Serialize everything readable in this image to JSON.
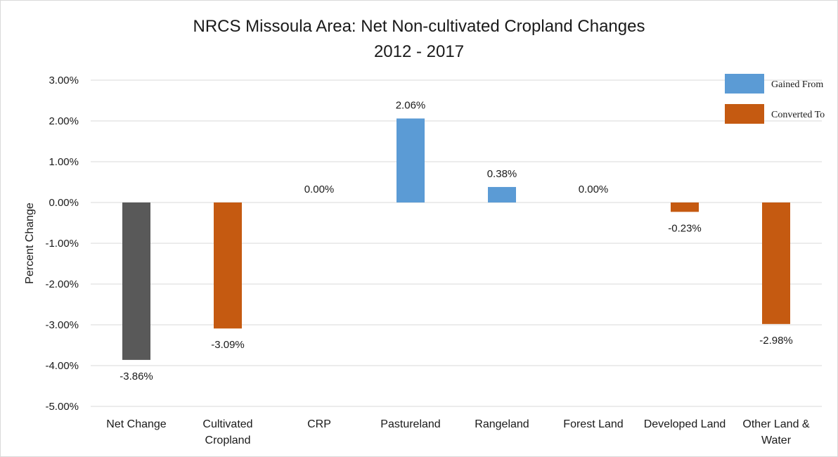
{
  "chart_data": {
    "type": "bar",
    "title": "NRCS Missoula Area: Net Non-cultivated Cropland Changes",
    "subtitle": "2012 - 2017",
    "xlabel": "",
    "ylabel": "Percent Change",
    "ylim": [
      -0.05,
      0.03
    ],
    "yticks": [
      0.03,
      0.02,
      0.01,
      0.0,
      -0.01,
      -0.02,
      -0.03,
      -0.04,
      -0.05
    ],
    "ytick_labels": [
      "3.00%",
      "2.00%",
      "1.00%",
      "0.00%",
      "-1.00%",
      "-2.00%",
      "-3.00%",
      "-4.00%",
      "-5.00%"
    ],
    "grid": true,
    "legend_position": "top-right",
    "legend": [
      {
        "name": "Gained From",
        "color": "#5b9bd5"
      },
      {
        "name": "Converted To",
        "color": "#c55a11"
      }
    ],
    "categories": [
      [
        "Net Change"
      ],
      [
        "Cultivated",
        "Cropland"
      ],
      [
        "CRP"
      ],
      [
        "Pastureland"
      ],
      [
        "Rangeland"
      ],
      [
        "Forest Land"
      ],
      [
        "Developed Land"
      ],
      [
        "Other Land &",
        "Water"
      ]
    ],
    "values": [
      -0.0386,
      -0.0309,
      0.0,
      0.0206,
      0.0038,
      0.0,
      -0.0023,
      -0.0298
    ],
    "data_labels": [
      "-3.86%",
      "-3.09%",
      "0.00%",
      "2.06%",
      "0.38%",
      "0.00%",
      "-0.23%",
      "-2.98%"
    ],
    "bar_colors": [
      "#595959",
      "#c55a11",
      "#5b9bd5",
      "#5b9bd5",
      "#5b9bd5",
      "#5b9bd5",
      "#c55a11",
      "#c55a11"
    ]
  }
}
